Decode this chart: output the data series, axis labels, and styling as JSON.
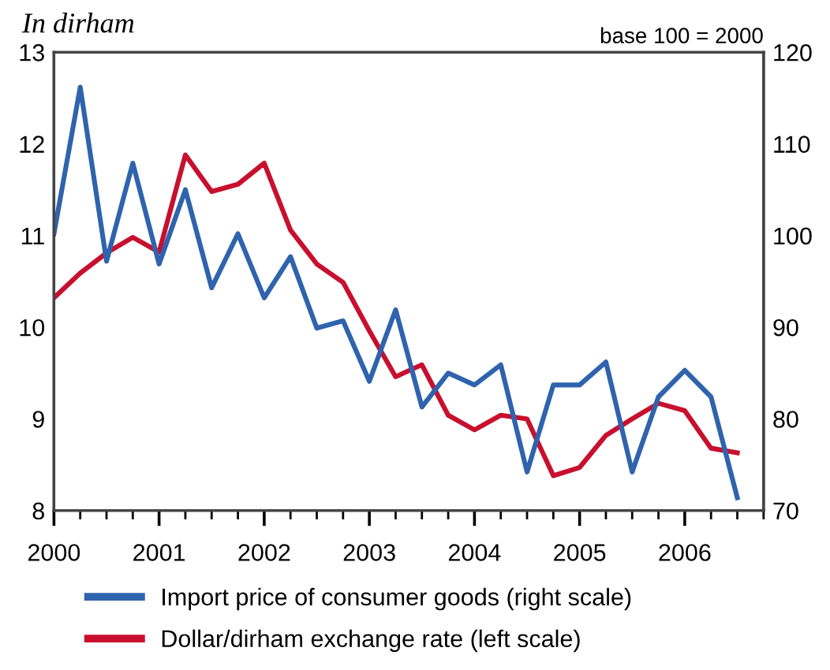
{
  "chart_data": {
    "type": "line",
    "ylabel": "In dirham",
    "y2label": "base 100 = 2000",
    "x": [
      2000,
      2000.25,
      2000.5,
      2000.75,
      2001,
      2001.25,
      2001.5,
      2001.75,
      2002,
      2002.25,
      2002.5,
      2002.75,
      2003,
      2003.25,
      2003.5,
      2003.75,
      2004,
      2004.25,
      2004.5,
      2004.75,
      2005,
      2005.25,
      2005.5,
      2005.75,
      2006,
      2006.25,
      2006.5
    ],
    "series": [
      {
        "name": "Import price of consumer goods (right scale)",
        "color": "#2f63ad",
        "axis": "y2",
        "values": [
          100.2,
          116.2,
          97.2,
          107.9,
          96.9,
          105,
          94.3,
          100.2,
          93.2,
          97.7,
          89.9,
          90.7,
          84.1,
          91.9,
          81.3,
          85.0,
          83.7,
          85.9,
          74.2,
          83.7,
          83.7,
          86.2,
          74.2,
          82.4,
          85.3,
          82.4,
          71.4
        ]
      },
      {
        "name": "Dollar/dirham exchange rate (left scale)",
        "color": "#c8102e",
        "values": [
          10.32,
          10.59,
          10.81,
          10.98,
          10.82,
          11.88,
          11.48,
          11.56,
          11.79,
          11.06,
          10.69,
          10.49,
          9.96,
          9.46,
          9.59,
          9.04,
          8.88,
          9.04,
          9.0,
          8.38,
          8.47,
          8.82,
          9.0,
          9.17,
          9.09,
          8.68,
          8.63
        ]
      }
    ],
    "xlim": [
      2000,
      2006.75
    ],
    "xticks": [
      {
        "value": 2000,
        "label": "2000"
      },
      {
        "value": 2001,
        "label": "2001"
      },
      {
        "value": 2002,
        "label": "2002"
      },
      {
        "value": 2003,
        "label": "2003"
      },
      {
        "value": 2004,
        "label": "2004"
      },
      {
        "value": 2005,
        "label": "2005"
      },
      {
        "value": 2006,
        "label": "2006"
      }
    ],
    "ylim": [
      8,
      13
    ],
    "yticks": [
      8,
      9,
      10,
      11,
      12,
      13
    ],
    "y2lim": [
      70,
      120
    ],
    "y2ticks": [
      70,
      80,
      90,
      100,
      110,
      120
    ],
    "grid": false,
    "legend": "bottom",
    "marker": "none",
    "line_style": "solid"
  }
}
